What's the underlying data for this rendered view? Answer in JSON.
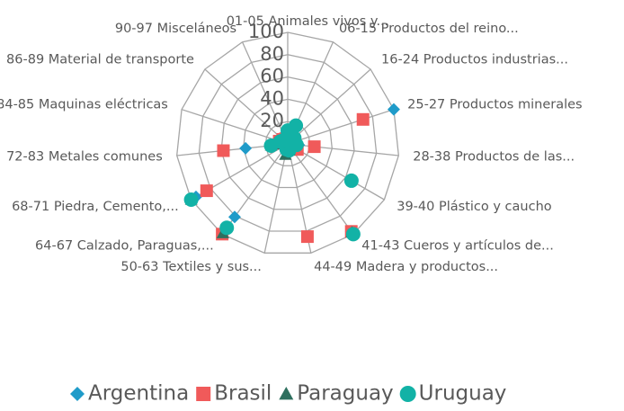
{
  "chart_data": {
    "type": "radar",
    "categories": [
      "01-05 Animales vivos y...",
      "06-15 Productos del reino...",
      "16-24 Productos industrias...",
      "25-27 Productos minerales",
      "28-38 Productos de las...",
      "39-40 Plástico y caucho",
      "41-43 Cueros y artículos de...",
      "44-49 Madera y productos...",
      "50-63 Textiles y sus...",
      "64-67 Calzado, Paraguas,...",
      "68-71 Piedra, Cemento,...",
      "72-83 Metales comunes",
      "84-85 Maquinas eléctricas",
      "86-89 Material de transporte",
      "90-97 Misceláneos"
    ],
    "series": [
      {
        "name": "Argentina",
        "color": "#1f9bc9",
        "marker": "diamond",
        "values": [
          5,
          8,
          6,
          100,
          10,
          8,
          97,
          5,
          4,
          81,
          95,
          38,
          10,
          8,
          6
        ]
      },
      {
        "name": "Brasil",
        "color": "#f05a5a",
        "marker": "square",
        "values": [
          6,
          5,
          4,
          71,
          24,
          10,
          97,
          85,
          3,
          100,
          84,
          58,
          8,
          6,
          5
        ]
      },
      {
        "name": "Paraguay",
        "color": "#2e6f5e",
        "marker": "triangle",
        "values": [
          8,
          4,
          3,
          2,
          5,
          5,
          98,
          6,
          10,
          99,
          100,
          15,
          4,
          3,
          3
        ]
      },
      {
        "name": "Uruguay",
        "color": "#12b2a6",
        "marker": "circle",
        "values": [
          12,
          18,
          8,
          4,
          8,
          66,
          100,
          6,
          5,
          93,
          100,
          15,
          7,
          5,
          4
        ]
      }
    ],
    "ylim": [
      0,
      100
    ],
    "yticks": [
      0,
      20,
      40,
      60,
      80,
      100
    ],
    "grid": true,
    "legend": "bottom"
  }
}
